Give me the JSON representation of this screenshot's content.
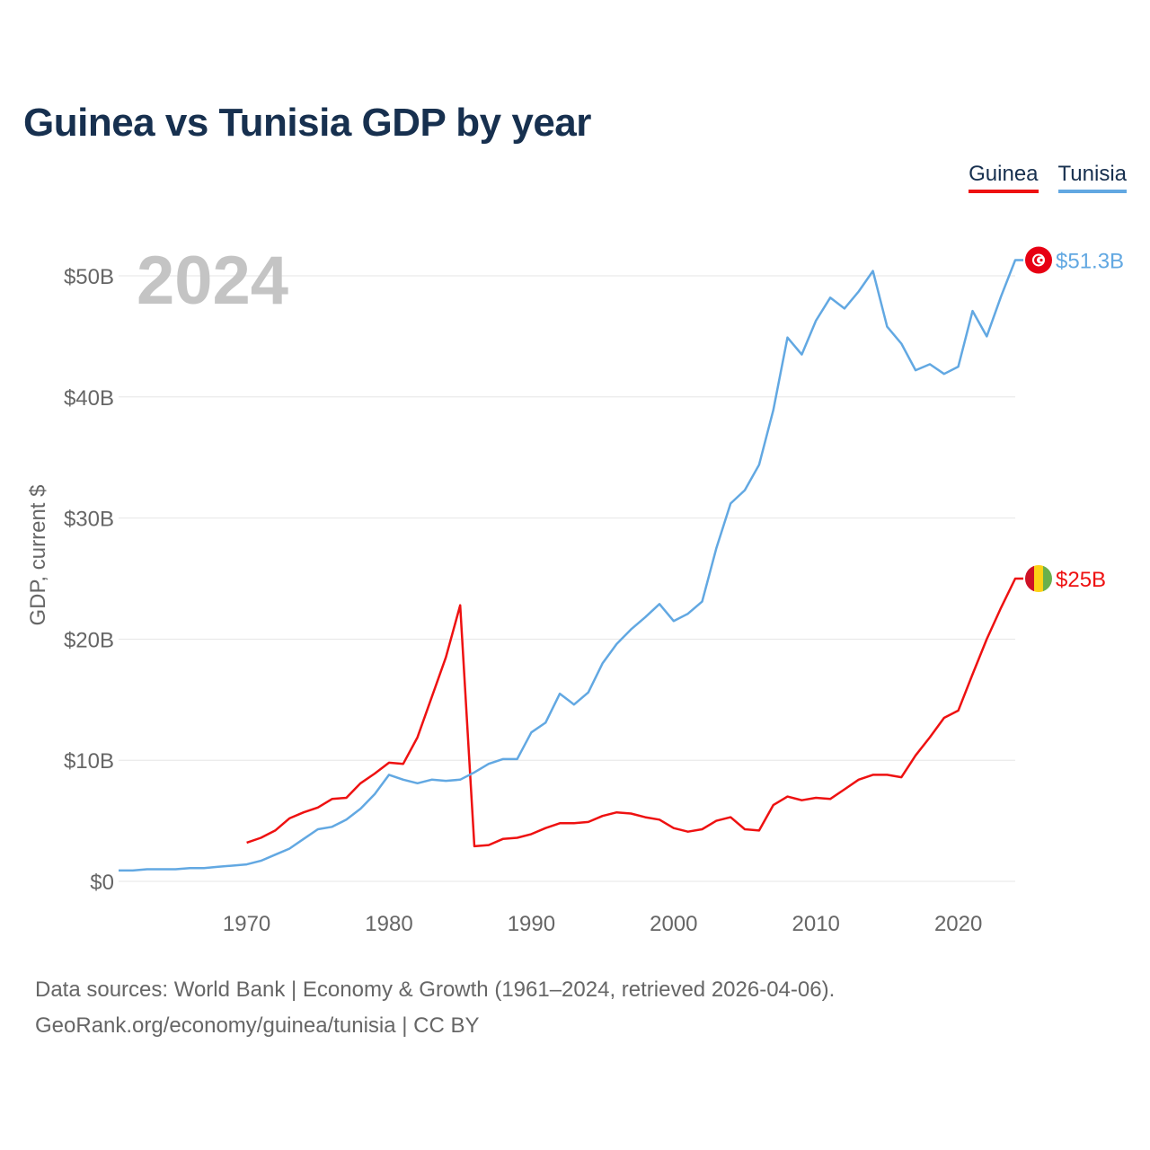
{
  "title": "Guinea vs Tunisia GDP by year",
  "year_overlay": "2024",
  "source_lines": [
    "Data sources: World Bank | Economy & Growth (1961–2024, retrieved 2026-04-06).",
    "GeoRank.org/economy/guinea/tunisia | CC BY"
  ],
  "colors": {
    "guinea": "#ee1111",
    "tunisia": "#62a8e2",
    "grid": "#e6e6e6",
    "axis_text": "#666666",
    "year_overlay": "#c4c4c4"
  },
  "chart_data": {
    "type": "line",
    "ylabel": "GDP, current $",
    "xlabel": "",
    "xlim": [
      1961,
      2024
    ],
    "ylim": [
      0,
      53
    ],
    "x_ticks": [
      1970,
      1980,
      1990,
      2000,
      2010,
      2020
    ],
    "y_ticks": [
      {
        "value": 0,
        "label": "$0"
      },
      {
        "value": 10,
        "label": "$10B"
      },
      {
        "value": 20,
        "label": "$20B"
      },
      {
        "value": 30,
        "label": "$30B"
      },
      {
        "value": 40,
        "label": "$40B"
      },
      {
        "value": 50,
        "label": "$50B"
      }
    ],
    "series": [
      {
        "key": "guinea",
        "name": "Guinea",
        "end_label": "$25B",
        "flag": "guinea",
        "x": [
          1970,
          1971,
          1972,
          1973,
          1974,
          1975,
          1976,
          1977,
          1978,
          1979,
          1980,
          1981,
          1982,
          1983,
          1984,
          1985,
          1986,
          1987,
          1988,
          1989,
          1990,
          1991,
          1992,
          1993,
          1994,
          1995,
          1996,
          1997,
          1998,
          1999,
          2000,
          2001,
          2002,
          2003,
          2004,
          2005,
          2006,
          2007,
          2008,
          2009,
          2010,
          2011,
          2012,
          2013,
          2014,
          2015,
          2016,
          2017,
          2018,
          2019,
          2020,
          2021,
          2022,
          2023,
          2024
        ],
        "values": [
          3.2,
          3.6,
          4.2,
          5.2,
          5.7,
          6.1,
          6.8,
          6.9,
          8.1,
          8.9,
          9.8,
          9.7,
          11.9,
          15.2,
          18.5,
          22.8,
          2.9,
          3.0,
          3.5,
          3.6,
          3.9,
          4.4,
          4.8,
          4.8,
          4.9,
          5.4,
          5.7,
          5.6,
          5.3,
          5.1,
          4.4,
          4.1,
          4.3,
          5.0,
          5.3,
          4.3,
          4.2,
          6.3,
          7.0,
          6.7,
          6.9,
          6.8,
          7.6,
          8.4,
          8.8,
          8.8,
          8.6,
          10.4,
          11.9,
          13.5,
          14.1,
          17.1,
          20.0,
          22.6,
          25.0
        ]
      },
      {
        "key": "tunisia",
        "name": "Tunisia",
        "end_label": "$51.3B",
        "flag": "tunisia",
        "x": [
          1961,
          1962,
          1963,
          1964,
          1965,
          1966,
          1967,
          1968,
          1969,
          1970,
          1971,
          1972,
          1973,
          1974,
          1975,
          1976,
          1977,
          1978,
          1979,
          1980,
          1981,
          1982,
          1983,
          1984,
          1985,
          1986,
          1987,
          1988,
          1989,
          1990,
          1991,
          1992,
          1993,
          1994,
          1995,
          1996,
          1997,
          1998,
          1999,
          2000,
          2001,
          2002,
          2003,
          2004,
          2005,
          2006,
          2007,
          2008,
          2009,
          2010,
          2011,
          2012,
          2013,
          2014,
          2015,
          2016,
          2017,
          2018,
          2019,
          2020,
          2021,
          2022,
          2023,
          2024
        ],
        "values": [
          0.9,
          0.9,
          1.0,
          1.0,
          1.0,
          1.1,
          1.1,
          1.2,
          1.3,
          1.4,
          1.7,
          2.2,
          2.7,
          3.5,
          4.3,
          4.5,
          5.1,
          6.0,
          7.2,
          8.8,
          8.4,
          8.1,
          8.4,
          8.3,
          8.4,
          9.0,
          9.7,
          10.1,
          10.1,
          12.3,
          13.1,
          15.5,
          14.6,
          15.6,
          18.0,
          19.6,
          20.8,
          21.8,
          22.9,
          21.5,
          22.1,
          23.1,
          27.5,
          31.2,
          32.3,
          34.4,
          38.9,
          44.9,
          43.5,
          46.3,
          48.2,
          47.3,
          48.7,
          50.4,
          45.8,
          44.4,
          42.2,
          42.7,
          41.9,
          42.5,
          47.1,
          45.0,
          48.3,
          51.3
        ]
      }
    ]
  }
}
